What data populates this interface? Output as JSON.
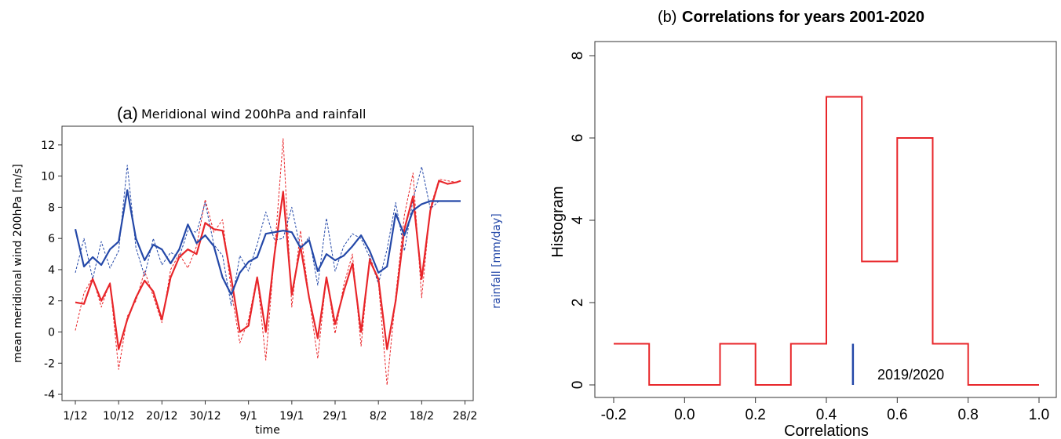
{
  "chart_data": [
    {
      "panel": "(a)",
      "type": "line",
      "title": "Meridional wind 200hPa and rainfall",
      "xlabel": "time",
      "ylabel": "mean meridional wind 200hPa [m/s]",
      "ylabel_right": "rainfall [mm/day]",
      "ylim": [
        -4.4,
        13.2
      ],
      "yticks": [
        "-4",
        "-2",
        "0",
        "2",
        "4",
        "6",
        "8",
        "10",
        "12"
      ],
      "x_tick_labels": [
        "1/12",
        "10/12",
        "20/12",
        "30/12",
        "9/1",
        "19/1",
        "29/1",
        "8/2",
        "18/2",
        "28/2"
      ],
      "grid": false,
      "colors": {
        "wind": "#e8262a",
        "rainfall": "#2448a8"
      },
      "x_days": [
        0,
        2,
        4,
        6,
        8,
        10,
        12,
        14,
        16,
        18,
        20,
        22,
        24,
        26,
        28,
        30,
        32,
        34,
        36,
        38,
        40,
        42,
        44,
        46,
        48,
        50,
        52,
        54,
        56,
        58,
        60,
        62,
        64,
        66,
        68,
        70,
        72,
        74,
        76,
        78,
        80,
        82,
        84,
        86,
        88,
        89
      ],
      "series": [
        {
          "style": "solid",
          "color": "#e8262a",
          "values": [
            1.9,
            1.8,
            3.4,
            2.0,
            3.1,
            -1.1,
            0.8,
            2.2,
            3.3,
            2.6,
            0.8,
            3.5,
            4.8,
            5.3,
            5.0,
            7.0,
            6.6,
            6.5,
            3.5,
            0.0,
            0.4,
            3.5,
            0.0,
            5.0,
            9.0,
            2.4,
            5.5,
            2.2,
            -0.4,
            3.5,
            0.5,
            2.6,
            4.4,
            0.0,
            4.6,
            3.4,
            -1.1,
            2.0,
            6.6,
            8.7,
            3.4,
            7.8,
            9.7,
            9.5,
            9.6,
            9.7
          ]
        },
        {
          "style": "dashed",
          "color": "#e8262a",
          "values": [
            0.1,
            2.5,
            3.5,
            1.6,
            3.2,
            -2.4,
            1.0,
            2.0,
            3.9,
            2.3,
            0.6,
            4.0,
            5.0,
            4.1,
            5.5,
            8.5,
            6.4,
            7.2,
            2.7,
            -0.7,
            0.8,
            3.6,
            -1.8,
            5.1,
            12.4,
            1.6,
            6.5,
            2.2,
            -1.7,
            3.6,
            -0.1,
            3.0,
            5.0,
            -0.9,
            4.9,
            3.2,
            -3.4,
            2.3,
            7.5,
            10.2,
            2.2,
            8.0,
            9.8,
            9.7,
            9.6,
            9.7
          ]
        },
        {
          "style": "solid",
          "color": "#2448a8",
          "values": [
            6.6,
            4.2,
            4.8,
            4.3,
            5.3,
            5.8,
            9.1,
            6.0,
            4.6,
            5.6,
            5.3,
            4.4,
            5.3,
            6.9,
            5.7,
            6.2,
            5.5,
            3.5,
            2.4,
            3.8,
            4.5,
            4.8,
            6.3,
            6.4,
            6.5,
            6.4,
            5.4,
            5.9,
            3.9,
            5.0,
            4.6,
            4.9,
            5.5,
            6.2,
            5.2,
            3.8,
            4.2,
            7.6,
            6.2,
            7.8,
            8.2,
            8.4,
            8.4,
            8.4,
            8.4,
            8.4
          ]
        },
        {
          "style": "dashed",
          "color": "#2448a8",
          "values": [
            3.8,
            6.0,
            3.4,
            5.8,
            4.1,
            5.2,
            10.7,
            5.4,
            3.6,
            6.0,
            4.3,
            5.1,
            4.8,
            6.5,
            6.4,
            8.3,
            5.6,
            4.9,
            1.7,
            4.9,
            3.9,
            5.6,
            7.7,
            5.9,
            6.0,
            8.0,
            5.3,
            6.1,
            3.0,
            7.3,
            3.9,
            5.5,
            6.3,
            6.0,
            4.8,
            3.1,
            5.3,
            8.3,
            5.2,
            8.5,
            10.6,
            7.9,
            8.4,
            8.4,
            8.4,
            8.4
          ]
        }
      ]
    },
    {
      "panel": "(b)",
      "type": "bar",
      "title": "Correlations for years 2001-2020",
      "xlabel": "Correlations",
      "ylabel": "Histogram",
      "xlim": [
        -0.2,
        1.0
      ],
      "ylim": [
        0,
        8
      ],
      "xticks": [
        "-0.2",
        "0.0",
        "0.2",
        "0.4",
        "0.6",
        "0.8",
        "1.0"
      ],
      "yticks": [
        "0",
        "2",
        "4",
        "6",
        "8"
      ],
      "bin_edges": [
        -0.2,
        -0.1,
        0.0,
        0.1,
        0.2,
        0.3,
        0.4,
        0.5,
        0.6,
        0.7,
        0.8,
        0.9,
        1.0
      ],
      "counts": [
        1,
        0,
        0,
        1,
        0,
        1,
        7,
        3,
        6,
        1,
        0,
        0
      ],
      "marker": {
        "x": 0.475,
        "height": 1.0,
        "label": "2019/2020",
        "color": "#2448a8"
      },
      "colors": {
        "histogram": "#e8262a"
      }
    }
  ]
}
